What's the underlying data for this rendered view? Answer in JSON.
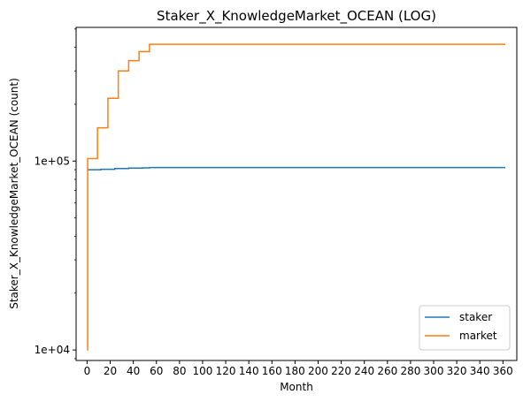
{
  "chart_data": {
    "type": "line",
    "title": "Staker_X_KnowledgeMarket_OCEAN (LOG)",
    "xlabel": "Month",
    "ylabel": "Staker_X_KnowledgeMarket_OCEAN (count)",
    "yscale": "log",
    "xlim": [
      -9.5,
      372
    ],
    "ylim": [
      8800,
      510000
    ],
    "xticks": [
      0,
      20,
      40,
      60,
      80,
      100,
      120,
      140,
      160,
      180,
      200,
      220,
      240,
      260,
      280,
      300,
      320,
      340,
      360
    ],
    "xtick_labels": [
      "0",
      "20",
      "40",
      "60",
      "80",
      "100",
      "120",
      "140",
      "160",
      "180",
      "200",
      "220",
      "240",
      "260",
      "280",
      "300",
      "320",
      "340",
      "360"
    ],
    "yticks": [
      10000,
      100000
    ],
    "ytick_labels": [
      "1e+04",
      "1e+05"
    ],
    "grid": false,
    "legend": "lower-right",
    "series": [
      {
        "name": "staker",
        "color": "#1f77b4",
        "step": true,
        "x": [
          0,
          12,
          24,
          36,
          48,
          54,
          362
        ],
        "y": [
          90000,
          90500,
          91300,
          91800,
          92100,
          92400,
          92400
        ]
      },
      {
        "name": "market",
        "color": "#ff7f0e",
        "step": true,
        "x": [
          0,
          0.5,
          9,
          18,
          27,
          36,
          45,
          54,
          362
        ],
        "y": [
          10000,
          103000,
          150000,
          215000,
          300000,
          340000,
          380000,
          415000,
          415000
        ]
      }
    ]
  }
}
